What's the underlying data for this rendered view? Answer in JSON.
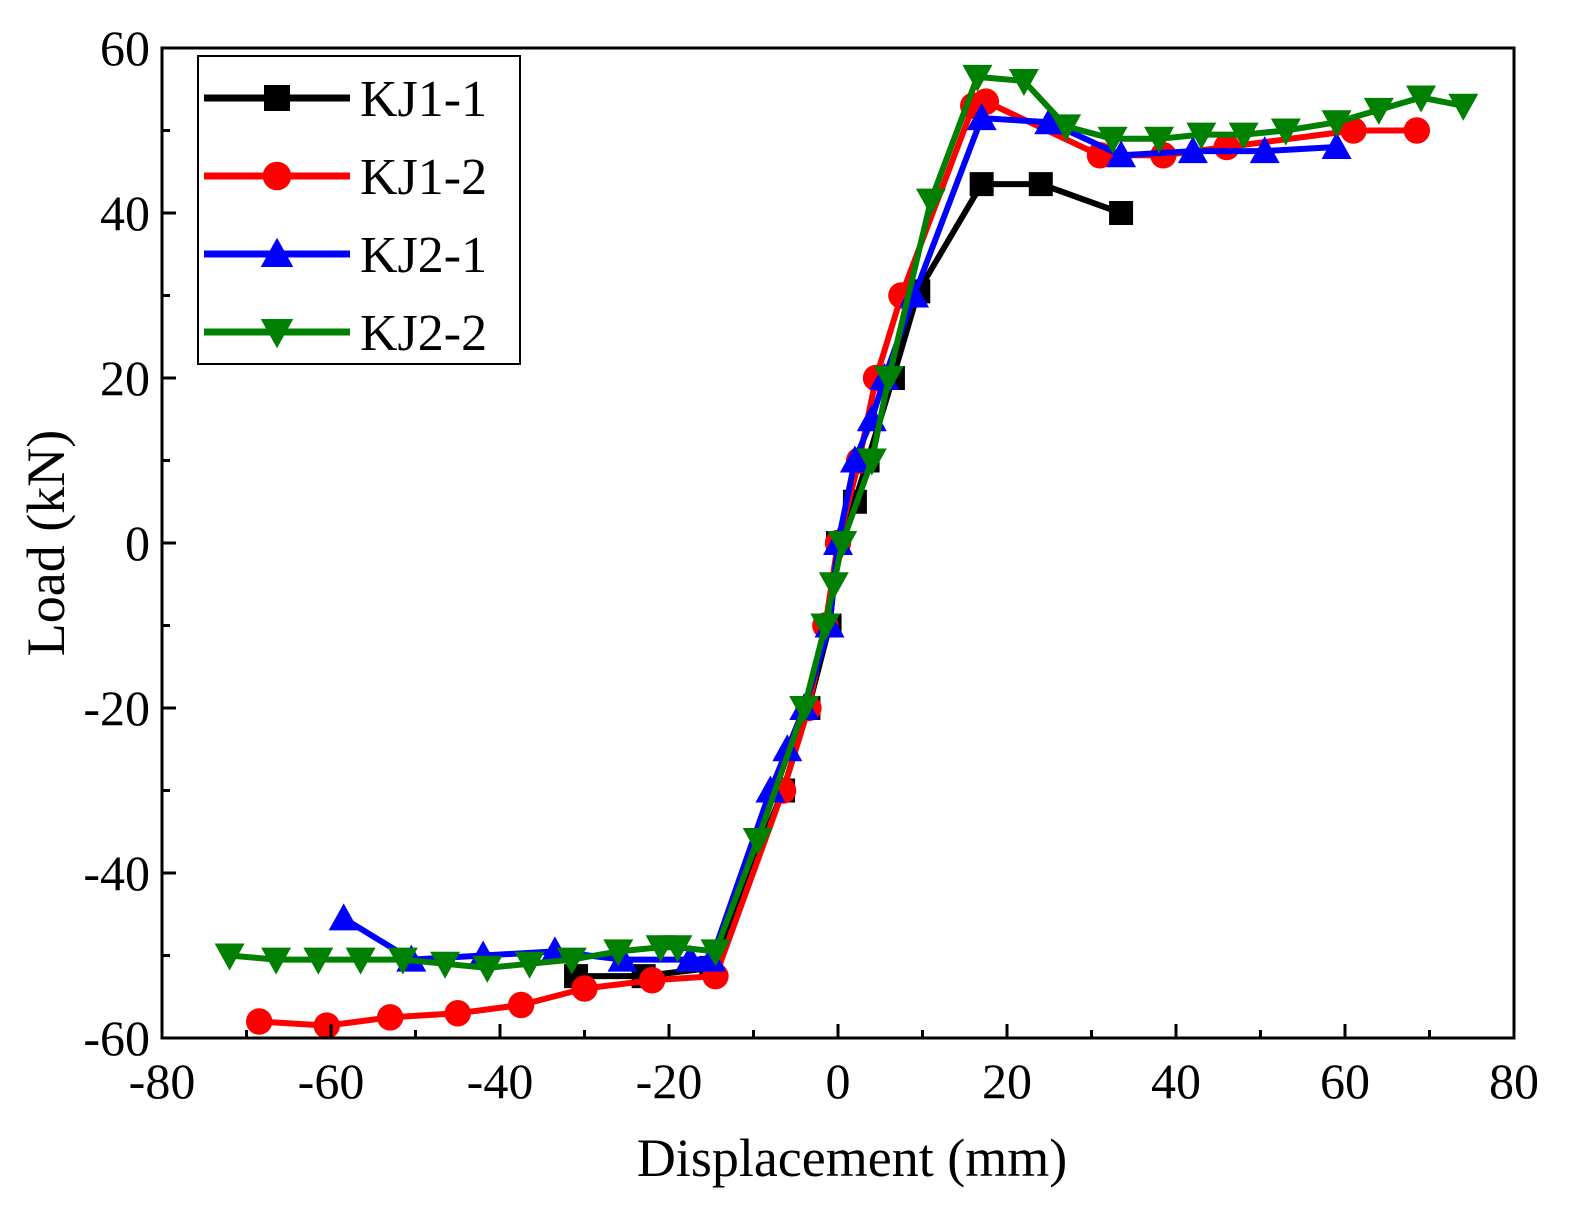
{
  "chart_data": {
    "type": "line",
    "title": "",
    "xlabel": "Displacement (mm)",
    "ylabel": "Load (kN)",
    "xlim": [
      -80,
      80
    ],
    "ylim": [
      -60,
      60
    ],
    "xticks": [
      -80,
      -60,
      -40,
      -20,
      0,
      20,
      40,
      60,
      80
    ],
    "yticks": [
      -60,
      -40,
      -20,
      0,
      20,
      40,
      60
    ],
    "x_tick_labels": [
      "-80",
      "-60",
      "-40",
      "-20",
      "0",
      "20",
      "40",
      "60",
      "80"
    ],
    "y_tick_labels": [
      "-60",
      "-40",
      "-20",
      "0",
      "20",
      "40",
      "60"
    ],
    "legend_position": "top-left",
    "grid": false,
    "series": [
      {
        "name": "KJ1-1",
        "color": "#000000",
        "marker": "square",
        "x": [
          -31,
          -23,
          -15,
          -6.5,
          -3.5,
          -1,
          0,
          2,
          3.5,
          6.5,
          9.5,
          17,
          24,
          33.5
        ],
        "y": [
          -52.5,
          -52.5,
          -51.5,
          -30,
          -20,
          -10,
          0,
          5,
          10,
          20,
          30.5,
          43.5,
          43.5,
          40
        ]
      },
      {
        "name": "KJ1-2",
        "color": "#ff0000",
        "marker": "circle",
        "x": [
          -68.5,
          -60.5,
          -53,
          -45,
          -37.5,
          -30,
          -22,
          -14.5,
          -6.5,
          -3.5,
          -1.5,
          0,
          2.5,
          4.5,
          7.5,
          16,
          17.5,
          31,
          38.5,
          46,
          61,
          68.5
        ],
        "y": [
          -58,
          -58.5,
          -57.5,
          -57,
          -56,
          -54,
          -53,
          -52.5,
          -30,
          -20,
          -10,
          0,
          10,
          20,
          30,
          53,
          53.5,
          47,
          47,
          48,
          50,
          50
        ]
      },
      {
        "name": "KJ2-1",
        "color": "#0000ff",
        "marker": "triangle-up",
        "x": [
          -58.5,
          -50.5,
          -42,
          -33.5,
          -25.5,
          -17.5,
          -15,
          -8,
          -6,
          -4,
          -1,
          0,
          2,
          4,
          5.5,
          9,
          17,
          25,
          33.5,
          42,
          50.5,
          59
        ],
        "y": [
          -45.5,
          -50.5,
          -50,
          -49.5,
          -50.5,
          -50.5,
          -50.5,
          -30,
          -25,
          -20,
          -10,
          0,
          10,
          15,
          20,
          30,
          51.5,
          51,
          47,
          47.5,
          47.5,
          48
        ]
      },
      {
        "name": "KJ2-2",
        "color": "#008000",
        "marker": "triangle-down",
        "x": [
          -72,
          -66.5,
          -61.5,
          -56.5,
          -51.5,
          -46.5,
          -41.5,
          -36.5,
          -31.5,
          -26,
          -21,
          -19,
          -14.5,
          -9.5,
          -4,
          -1.5,
          -0.5,
          0.5,
          4,
          6,
          11,
          16.5,
          22,
          27,
          32.5,
          38,
          43,
          48,
          53,
          59,
          64,
          69,
          74
        ],
        "y": [
          -50,
          -50.5,
          -50.5,
          -50.5,
          -50.5,
          -51,
          -51.5,
          -51,
          -50.5,
          -49.5,
          -49,
          -49,
          -49.5,
          -36,
          -20,
          -10,
          -5,
          0,
          10,
          20,
          41.5,
          56.5,
          56,
          50.5,
          49,
          49,
          49.5,
          49.5,
          50,
          51,
          52.5,
          54,
          53
        ]
      }
    ]
  }
}
